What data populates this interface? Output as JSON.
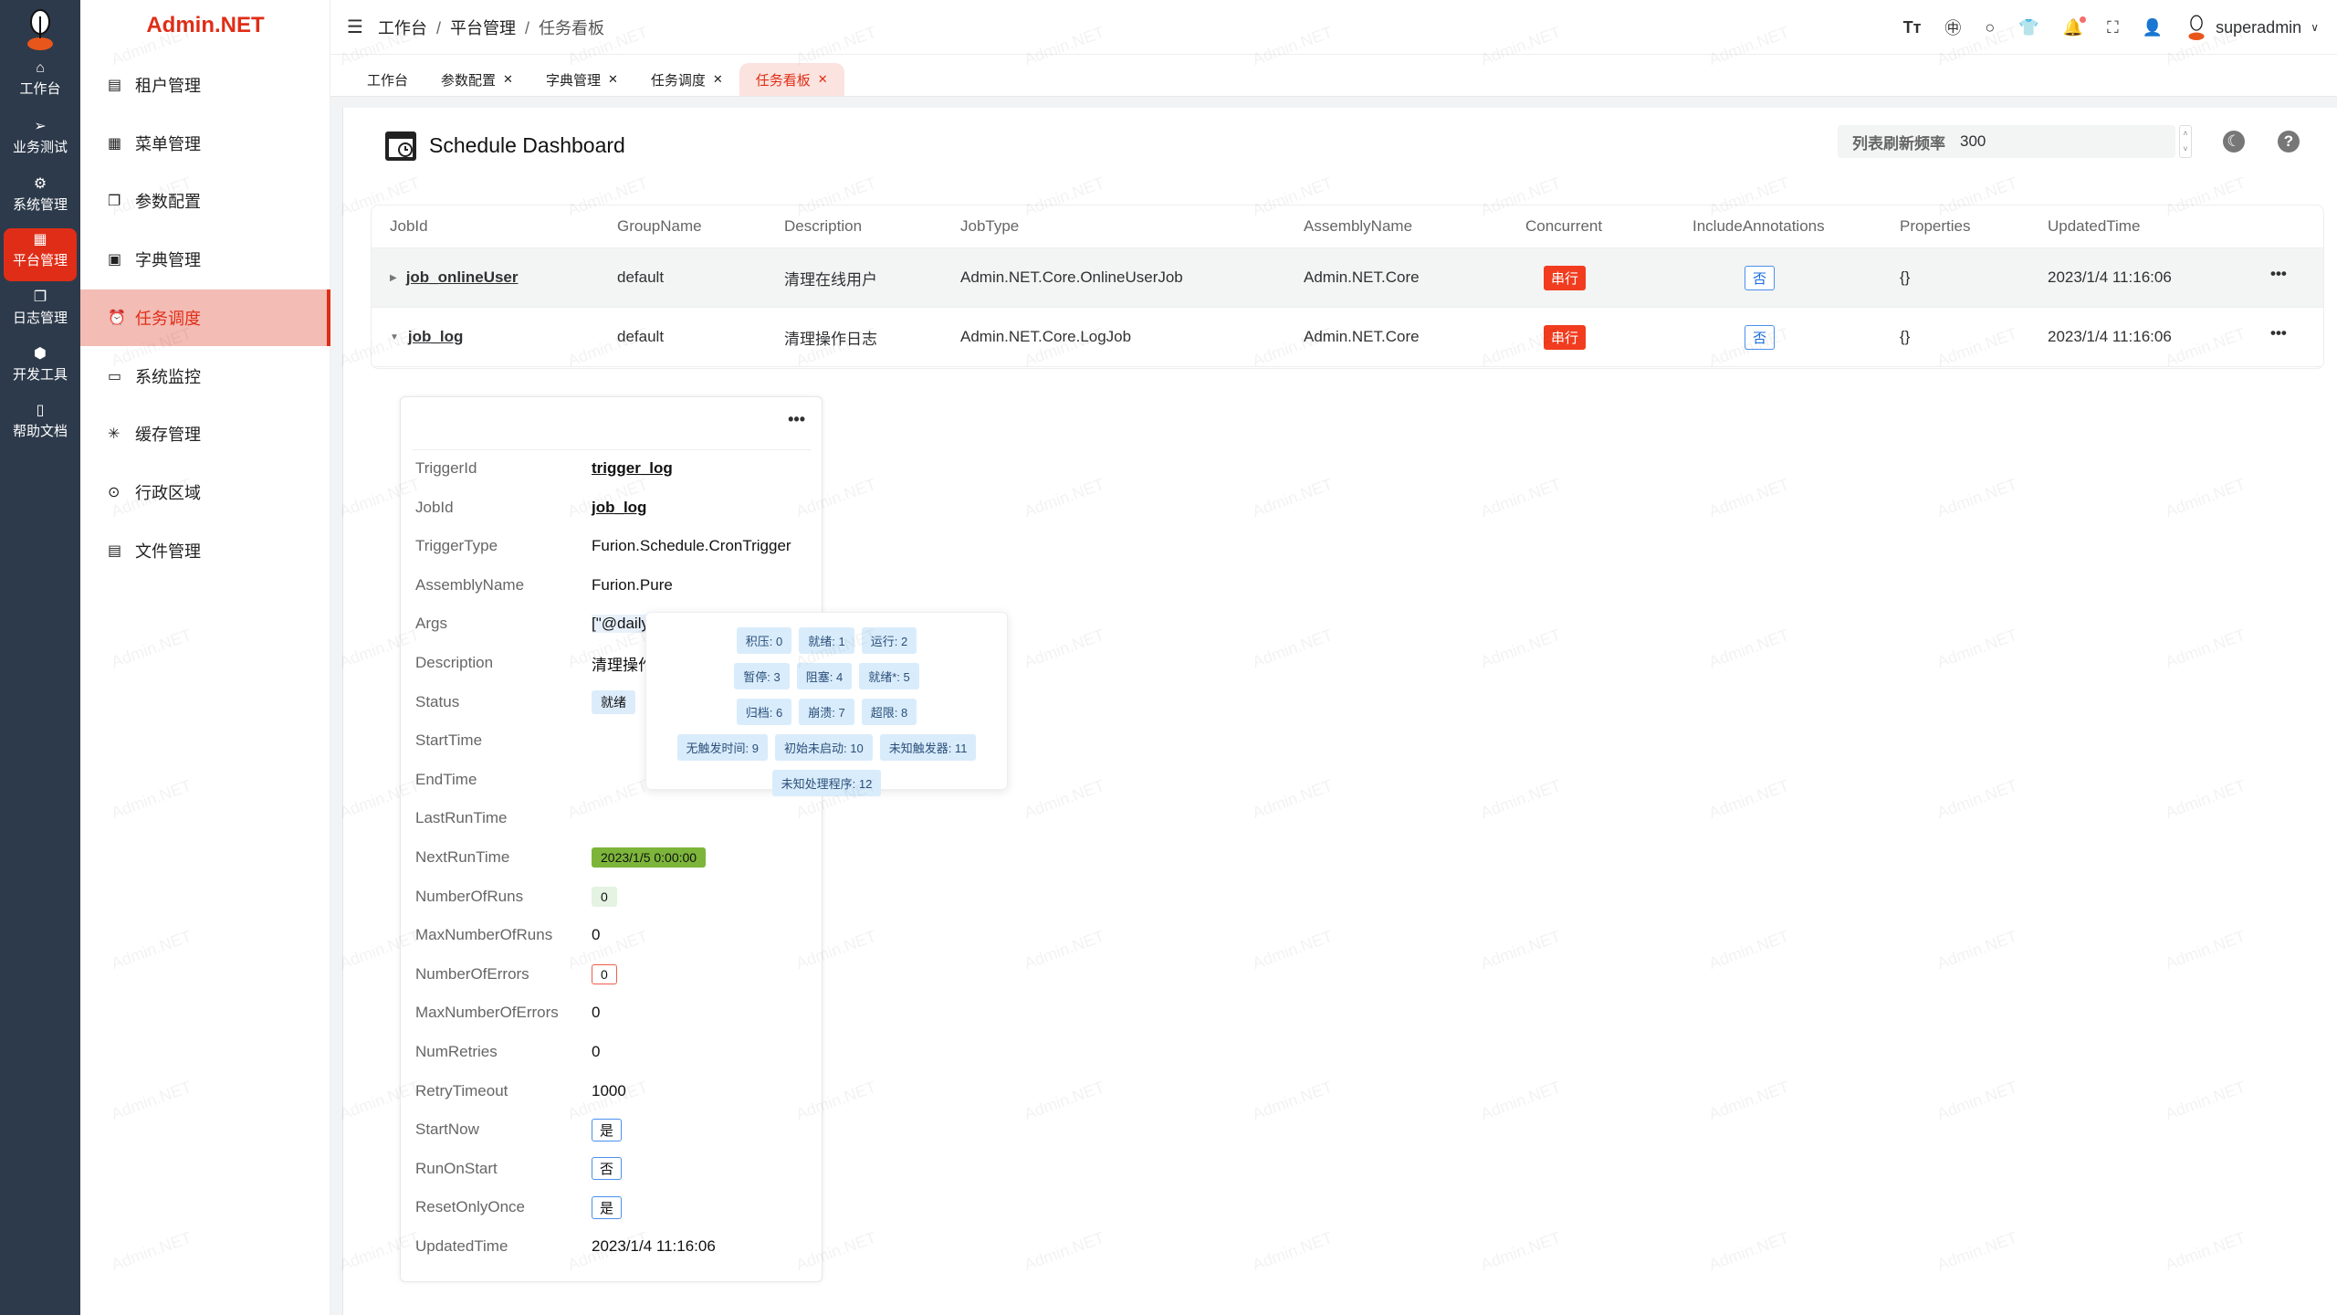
{
  "brand": "Admin.NET",
  "rail": [
    {
      "label": "工作台",
      "icon": "home-icon"
    },
    {
      "label": "业务测试",
      "icon": "send-icon"
    },
    {
      "label": "系统管理",
      "icon": "gear-icon"
    },
    {
      "label": "平台管理",
      "icon": "grid-icon",
      "active": true
    },
    {
      "label": "日志管理",
      "icon": "copy-icon"
    },
    {
      "label": "开发工具",
      "icon": "chip-icon"
    },
    {
      "label": "帮助文档",
      "icon": "book-icon"
    }
  ],
  "menu": [
    {
      "label": "租户管理"
    },
    {
      "label": "菜单管理"
    },
    {
      "label": "参数配置"
    },
    {
      "label": "字典管理"
    },
    {
      "label": "任务调度",
      "active": true
    },
    {
      "label": "系统监控"
    },
    {
      "label": "缓存管理"
    },
    {
      "label": "行政区域"
    },
    {
      "label": "文件管理"
    }
  ],
  "breadcrumb": [
    "工作台",
    "平台管理",
    "任务看板"
  ],
  "user": {
    "name": "superadmin"
  },
  "tabs": [
    {
      "label": "工作台"
    },
    {
      "label": "参数配置"
    },
    {
      "label": "字典管理"
    },
    {
      "label": "任务调度"
    },
    {
      "label": "任务看板",
      "active": true
    }
  ],
  "page": {
    "title": "Schedule Dashboard",
    "refresh_label": "列表刷新频率",
    "refresh_value": "300"
  },
  "table": {
    "columns": [
      "JobId",
      "GroupName",
      "Description",
      "JobType",
      "AssemblyName",
      "Concurrent",
      "IncludeAnnotations",
      "Properties",
      "UpdatedTime"
    ],
    "rows": [
      {
        "JobId": "job_onlineUser",
        "GroupName": "default",
        "Description": "清理在线用户",
        "JobType": "Admin.NET.Core.OnlineUserJob",
        "AssemblyName": "Admin.NET.Core",
        "Concurrent": "串行",
        "IncludeAnnotations": "否",
        "Properties": "{}",
        "UpdatedTime": "2023/1/4 11:16:06",
        "expanded": false
      },
      {
        "JobId": "job_log",
        "GroupName": "default",
        "Description": "清理操作日志",
        "JobType": "Admin.NET.Core.LogJob",
        "AssemblyName": "Admin.NET.Core",
        "Concurrent": "串行",
        "IncludeAnnotations": "否",
        "Properties": "{}",
        "UpdatedTime": "2023/1/4 11:16:06",
        "expanded": true
      }
    ]
  },
  "trigger": [
    {
      "label": "TriggerId",
      "value": "trigger_log",
      "style": "link"
    },
    {
      "label": "JobId",
      "value": "job_log",
      "style": "link"
    },
    {
      "label": "TriggerType",
      "value": "Furion.Schedule.CronTrigger"
    },
    {
      "label": "AssemblyName",
      "value": "Furion.Pure"
    },
    {
      "label": "Args",
      "value": "[\"@daily"
    },
    {
      "label": "Description",
      "value": "清理操作"
    },
    {
      "label": "Status",
      "value": "就绪",
      "style": "status"
    },
    {
      "label": "StartTime",
      "value": ""
    },
    {
      "label": "EndTime",
      "value": ""
    },
    {
      "label": "LastRunTime",
      "value": ""
    },
    {
      "label": "NextRunTime",
      "value": "2023/1/5 0:00:00",
      "style": "green"
    },
    {
      "label": "NumberOfRuns",
      "value": "0",
      "style": "lightgreen"
    },
    {
      "label": "MaxNumberOfRuns",
      "value": "0"
    },
    {
      "label": "NumberOfErrors",
      "value": "0",
      "style": "red"
    },
    {
      "label": "MaxNumberOfErrors",
      "value": "0"
    },
    {
      "label": "NumRetries",
      "value": "0"
    },
    {
      "label": "RetryTimeout",
      "value": "1000"
    },
    {
      "label": "StartNow",
      "value": "是",
      "style": "blue"
    },
    {
      "label": "RunOnStart",
      "value": "否",
      "style": "blue"
    },
    {
      "label": "ResetOnlyOnce",
      "value": "是",
      "style": "blue"
    },
    {
      "label": "UpdatedTime",
      "value": "2023/1/4 11:16:06"
    }
  ],
  "status_legend": [
    [
      "积压: 0",
      "就绪: 1",
      "运行: 2"
    ],
    [
      "暂停: 3",
      "阻塞: 4",
      "就绪*: 5"
    ],
    [
      "归档: 6",
      "崩溃: 7",
      "超限: 8"
    ],
    [
      "无触发时间: 9",
      "初始未启动: 10",
      "未知触发器: 11"
    ],
    [
      "未知处理程序: 12"
    ]
  ],
  "watermark": "Admin.NET",
  "colors": {
    "accent": "#e02d17",
    "rail": "#2d3a4b"
  }
}
